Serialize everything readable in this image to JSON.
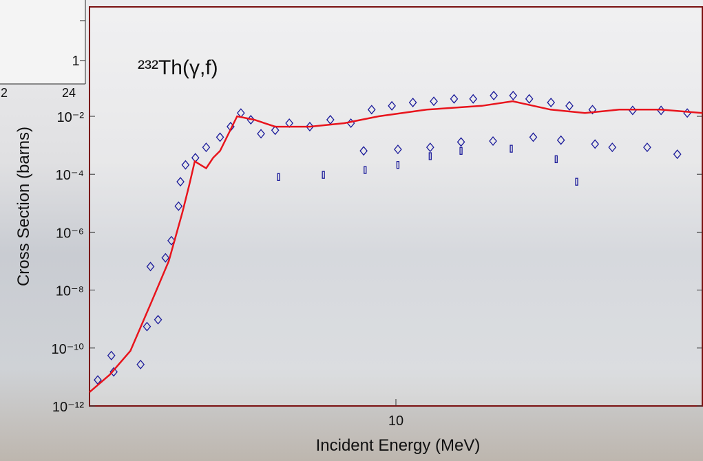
{
  "chart_data": {
    "type": "scatter-line",
    "annotation": "²³²Th(γ,f)",
    "x_label": "Incident Energy (MeV)",
    "y_label": "Cross Section (barns)",
    "xscale": "log",
    "yscale": "log",
    "xlim": [
      4,
      25
    ],
    "ylim": [
      1e-12,
      60
    ],
    "xticks": [
      10
    ],
    "yticks": [
      {
        "value": 0.01,
        "label": "10⁻²"
      },
      {
        "value": 0.0001,
        "label": "10⁻⁴"
      },
      {
        "value": 1e-06,
        "label": "10⁻⁶"
      },
      {
        "value": 1e-08,
        "label": "10⁻⁸"
      },
      {
        "value": 1e-10,
        "label": "10⁻¹⁰"
      },
      {
        "value": 1e-12,
        "label": "10⁻¹²"
      }
    ],
    "line": {
      "color": "#e8141c",
      "x": [
        4.0,
        4.25,
        4.52,
        4.81,
        5.07,
        5.28,
        5.39,
        5.48,
        5.56,
        5.67,
        5.79,
        5.91,
        6.22,
        6.55,
        6.97,
        7.73,
        8.57,
        9.5,
        10.97,
        12.93,
        14.18,
        15.88,
        17.6,
        19.5,
        22.06,
        25
      ],
      "values": [
        3e-12,
        1.2e-11,
        8e-11,
        3.7e-09,
        1e-07,
        4.7e-06,
        4.2e-05,
        0.00028,
        0.00022,
        0.00016,
        0.00037,
        0.00064,
        0.01,
        0.0076,
        0.0044,
        0.0044,
        0.0058,
        0.01,
        0.017,
        0.023,
        0.033,
        0.017,
        0.013,
        0.017,
        0.017,
        0.013
      ]
    },
    "series": [
      {
        "color": "#1a1a9a",
        "marker": "diamond",
        "x": [
          4.1,
          4.27,
          4.3,
          4.66,
          4.75,
          4.8,
          4.91,
          5.02,
          5.11,
          5.22,
          5.25,
          5.33,
          5.49,
          5.67,
          5.91,
          6.1,
          6.29,
          6.48,
          6.68,
          6.97,
          7.27,
          7.73,
          8.22,
          8.74,
          9.3,
          9.88,
          10.52,
          11.2,
          11.9,
          12.6,
          13.4,
          14.2,
          14.9,
          15.9,
          16.8,
          18.0,
          20.3,
          22.1,
          23.9
        ],
        "values": [
          7.9e-12,
          5.5e-11,
          1.5e-11,
          2.7e-11,
          5.5e-10,
          6.5e-08,
          9.5e-10,
          1.3e-07,
          5.1e-07,
          7.9e-06,
          5.5e-05,
          0.00021,
          0.00037,
          0.00085,
          0.0019,
          0.0044,
          0.013,
          0.0076,
          0.0025,
          0.0033,
          0.0058,
          0.0044,
          0.0076,
          0.0058,
          0.017,
          0.023,
          0.03,
          0.033,
          0.04,
          0.04,
          0.052,
          0.052,
          0.04,
          0.03,
          0.023,
          0.017,
          0.016,
          0.016,
          0.013
        ]
      },
      {
        "color": "#1a1a9a",
        "marker": "diamond",
        "x": [
          9.08,
          10.06,
          11.08,
          12.15,
          13.37,
          15.08,
          16.38,
          18.14,
          19.1,
          21.2,
          23.2
        ],
        "values": [
          0.00064,
          0.00072,
          0.00085,
          0.0013,
          0.0014,
          0.0019,
          0.0015,
          0.0011,
          0.00085,
          0.00085,
          0.00049
        ]
      },
      {
        "color": "#1a1a9a",
        "marker": "rect",
        "x": [
          7.04,
          8.05,
          9.12,
          10.06,
          11.08,
          12.15,
          14.12,
          16.15,
          17.17
        ],
        "values": [
          8e-05,
          9.5e-05,
          0.00014,
          0.00021,
          0.00042,
          0.00064,
          0.00076,
          0.00033,
          5.5e-05
        ]
      }
    ]
  },
  "left_panel": {
    "ytick": "1",
    "xticks": [
      "2",
      "24"
    ]
  }
}
